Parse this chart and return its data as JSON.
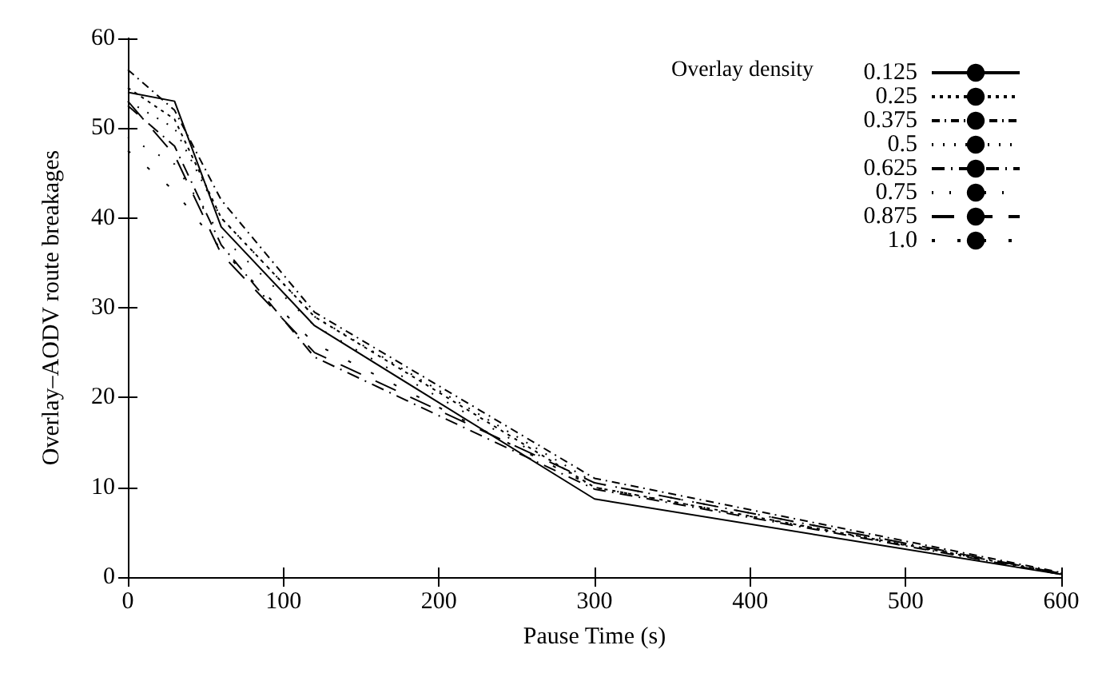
{
  "chart_data": {
    "type": "line",
    "xlabel": "Pause Time (s)",
    "ylabel": "Overlay–AODV route breakages",
    "legend_title": "Overlay density",
    "x": [
      0,
      30,
      60,
      120,
      300,
      600
    ],
    "series": [
      {
        "name": "0.125",
        "color": "#000000",
        "values": [
          54,
          53,
          39,
          28,
          8.7,
          0.3
        ]
      },
      {
        "name": "0.25",
        "color": "#000000",
        "line_style": "dotted",
        "values": [
          54.5,
          51,
          40,
          29,
          10,
          0.4
        ]
      },
      {
        "name": "0.375",
        "color": "#000000",
        "line_style": "dashed",
        "values": [
          56.5,
          52,
          42,
          29.5,
          11,
          0.5
        ]
      },
      {
        "name": "0.5",
        "color": "#000000",
        "line_style": "dotted",
        "values": [
          53,
          50,
          40,
          29,
          10.5,
          0.4
        ]
      },
      {
        "name": "0.625",
        "color": "#000000",
        "line_style": "dashed",
        "values": [
          52.5,
          48,
          37,
          24.5,
          9.8,
          0.3
        ]
      },
      {
        "name": "0.75",
        "color": "#000000",
        "line_style": "dotted",
        "values": [
          49,
          46,
          38,
          28,
          10,
          0.4
        ]
      },
      {
        "name": "0.875",
        "color": "#000000",
        "line_style": "dashed",
        "values": [
          53,
          47,
          36,
          25,
          10.5,
          0.4
        ]
      },
      {
        "name": "1.0",
        "color": "#000000",
        "line_style": "dotted",
        "values": [
          47.5,
          43,
          36.5,
          26,
          10,
          0.3
        ]
      }
    ],
    "xlim": [
      0,
      600
    ],
    "xticks": [
      0,
      100,
      200,
      300,
      400,
      500,
      600
    ],
    "ylim": [
      0,
      60
    ],
    "yticks": [
      0,
      10,
      20,
      30,
      40,
      50,
      60
    ],
    "grid": false,
    "legend": "top right",
    "marker": "none"
  }
}
